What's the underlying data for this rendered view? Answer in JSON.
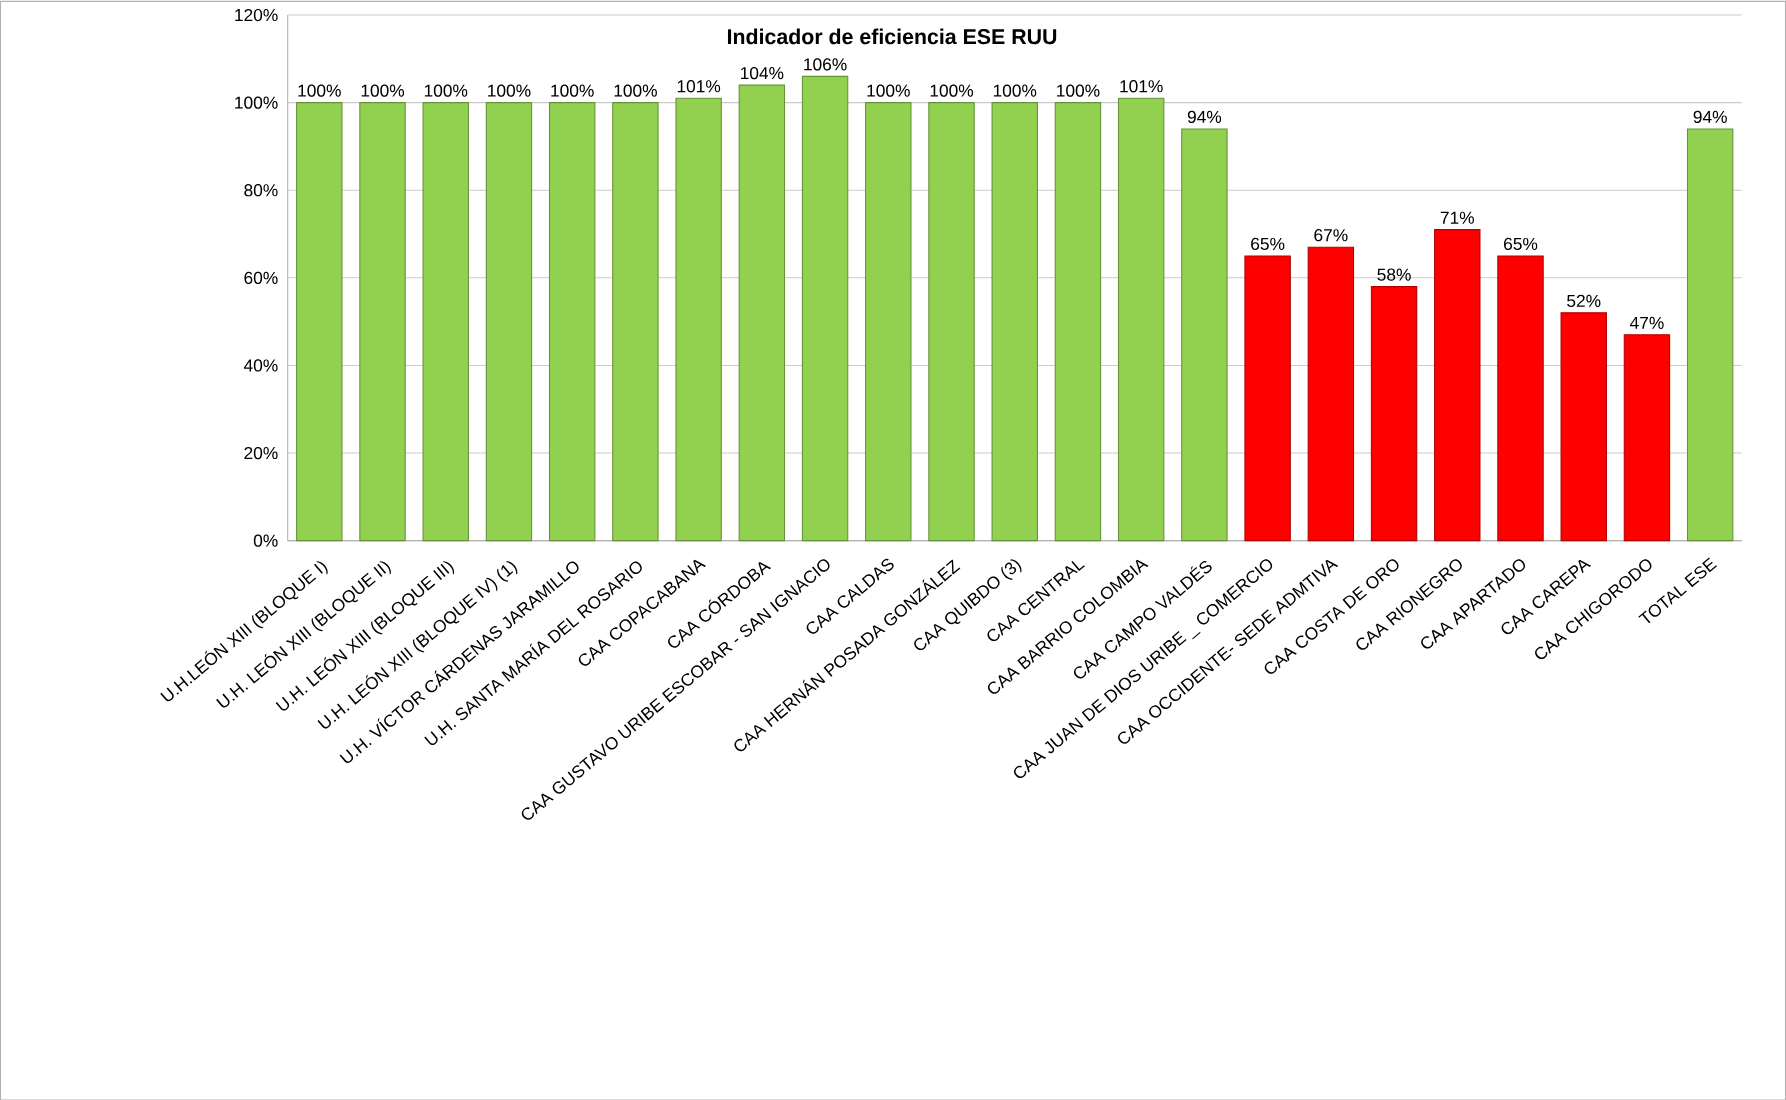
{
  "chart_data": {
    "type": "bar",
    "title": "Indicador de eficiencia ESE RUU",
    "categories": [
      "U.H.LEÓN XIII (BLOQUE I)",
      "U.H. LEÓN XIII (BLOQUE II)",
      "U.H. LEÓN XIII (BLOQUE III)",
      "U.H. LEÓN XIII (BLOQUE IV) (1)",
      "U.H. VÍCTOR CÁRDENAS JARAMILLO",
      "U.H. SANTA MARÍA DEL ROSARIO",
      "CAA COPACABANA",
      "CAA CÓRDOBA",
      "CAA GUSTAVO URIBE ESCOBAR - SAN IGNACIO",
      "CAA CALDAS",
      "CAA HERNÁN POSADA GONZÁLEZ",
      "CAA QUIBDO  (3)",
      "CAA CENTRAL",
      "CAA BARRIO COLOMBIA",
      "CAA CAMPO VALDÉS",
      "CAA JUAN DE DIOS URIBE _ COMERCIO",
      "CAA OCCIDENTE- SEDE ADMTIVA",
      "CAA COSTA DE ORO",
      "CAA RIONEGRO",
      "CAA APARTADO",
      "CAA CAREPA",
      "CAA CHIGORODO",
      "TOTAL ESE"
    ],
    "values": [
      100,
      100,
      100,
      100,
      100,
      100,
      101,
      104,
      106,
      100,
      100,
      100,
      100,
      101,
      94,
      65,
      67,
      58,
      71,
      65,
      52,
      47,
      94
    ],
    "value_labels": [
      "100%",
      "100%",
      "100%",
      "100%",
      "100%",
      "100%",
      "101%",
      "104%",
      "106%",
      "100%",
      "100%",
      "100%",
      "100%",
      "101%",
      "94%",
      "65%",
      "67%",
      "58%",
      "71%",
      "65%",
      "52%",
      "47%",
      "94%"
    ],
    "colors": [
      "#92d050",
      "#92d050",
      "#92d050",
      "#92d050",
      "#92d050",
      "#92d050",
      "#92d050",
      "#92d050",
      "#92d050",
      "#92d050",
      "#92d050",
      "#92d050",
      "#92d050",
      "#92d050",
      "#92d050",
      "#ff0000",
      "#ff0000",
      "#ff0000",
      "#ff0000",
      "#ff0000",
      "#ff0000",
      "#ff0000",
      "#92d050"
    ],
    "ylim": [
      0,
      120
    ],
    "yticks": [
      {
        "value": 0,
        "label": "0%"
      },
      {
        "value": 20,
        "label": "20%"
      },
      {
        "value": 40,
        "label": "40%"
      },
      {
        "value": 60,
        "label": "60%"
      },
      {
        "value": 80,
        "label": "80%"
      },
      {
        "value": 100,
        "label": "100%"
      },
      {
        "value": 120,
        "label": "120%"
      }
    ],
    "grid": "y"
  }
}
